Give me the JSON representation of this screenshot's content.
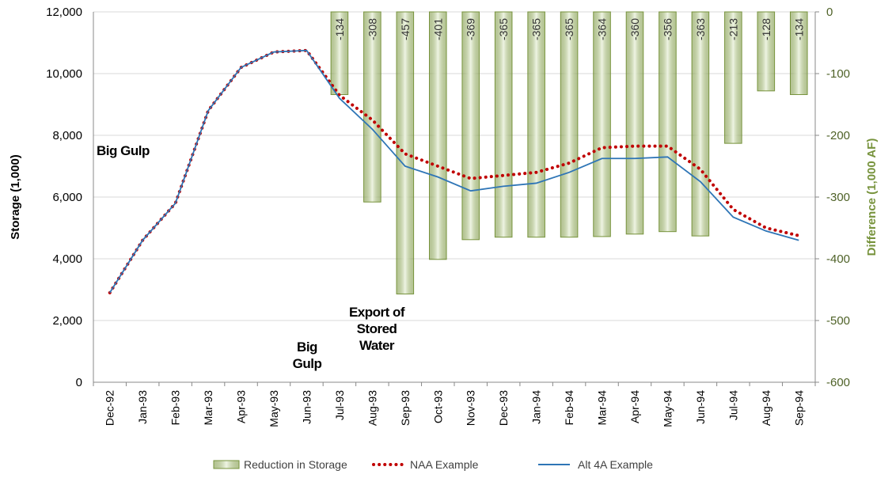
{
  "chart_data": {
    "type": "combo",
    "categories": [
      "Dec-92",
      "Jan-93",
      "Feb-93",
      "Mar-93",
      "Apr-93",
      "May-93",
      "Jun-93",
      "Jul-93",
      "Aug-93",
      "Sep-93",
      "Oct-93",
      "Nov-93",
      "Dec-93",
      "Jan-94",
      "Feb-94",
      "Mar-94",
      "Apr-94",
      "May-94",
      "Jun-94",
      "Jul-94",
      "Aug-94",
      "Sep-94"
    ],
    "y_label": "Storage (1,000)",
    "y2_label": "Difference (1,000 AF)",
    "ylim": [
      0,
      12000
    ],
    "yticks": [
      0,
      {
        "value": 2000,
        "label": "2,000"
      },
      {
        "value": 4000,
        "label": "4,000"
      },
      {
        "value": 6000,
        "label": "6,000"
      },
      {
        "value": 8000,
        "label": "8,000"
      },
      {
        "value": 10000,
        "label": "10,000"
      },
      {
        "value": 12000,
        "label": "12,000"
      }
    ],
    "y2lim": [
      -600,
      0
    ],
    "y2ticks": [
      0,
      -100,
      -200,
      -300,
      -400,
      -500,
      -600
    ],
    "grid": true,
    "series": [
      {
        "name": "Reduction in Storage",
        "type": "bar",
        "axis": "y2",
        "color": "#77933c",
        "values": [
          null,
          null,
          null,
          null,
          null,
          null,
          null,
          -134,
          -308,
          -457,
          -401,
          -369,
          -365,
          -365,
          -365,
          -364,
          -360,
          -356,
          -363,
          -213,
          -128,
          -134
        ]
      },
      {
        "name": "NAA Example",
        "type": "line",
        "style": "dotted",
        "color": "#c00000",
        "values": [
          2900,
          4600,
          5800,
          8800,
          10200,
          10700,
          10750,
          9300,
          8500,
          7400,
          7000,
          6600,
          6700,
          6800,
          7100,
          7600,
          7650,
          7650,
          6900,
          5600,
          5000,
          4750
        ]
      },
      {
        "name": "Alt 4A Example",
        "type": "line",
        "style": "solid",
        "color": "#2e75b6",
        "values": [
          2900,
          4600,
          5800,
          8800,
          10200,
          10700,
          10750,
          9200,
          8200,
          7000,
          6650,
          6200,
          6350,
          6450,
          6800,
          7250,
          7250,
          7300,
          6500,
          5350,
          4900,
          4600
        ]
      }
    ],
    "annotations": [
      [
        "Big Gulp"
      ],
      [
        "Big",
        "Gulp"
      ],
      [
        "Export of",
        "Stored",
        "Water"
      ]
    ]
  }
}
